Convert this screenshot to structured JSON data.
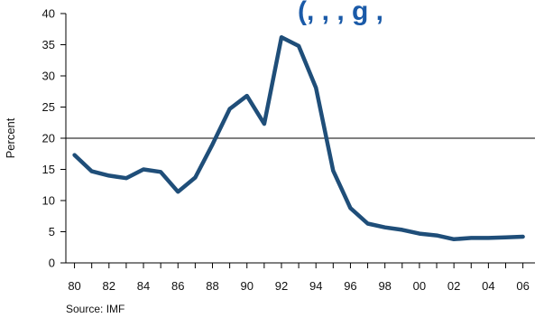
{
  "chart_data": {
    "type": "line",
    "title": "",
    "clipped_title_fragment": "(, ,    , g ,",
    "xlabel": "",
    "ylabel": "Percent",
    "source": "Source: IMF",
    "ylim": [
      0,
      40
    ],
    "y_ticks": [
      "0",
      "5",
      "10",
      "15",
      "20",
      "25",
      "30",
      "35",
      "40"
    ],
    "x_tick_labels": [
      "80",
      "82",
      "84",
      "86",
      "88",
      "90",
      "92",
      "94",
      "96",
      "98",
      "00",
      "02",
      "04",
      "06"
    ],
    "x_tick_count": 27,
    "reference_line": 20,
    "grid": false,
    "series": [
      {
        "color": "#1f4e79",
        "x": [
          1980,
          1981,
          1982,
          1983,
          1984,
          1985,
          1986,
          1987,
          1988,
          1989,
          1990,
          1991,
          1992,
          1993,
          1994,
          1995,
          1996,
          1997,
          1998,
          1999,
          2000,
          2001,
          2002,
          2003,
          2004,
          2005,
          2006
        ],
        "values": [
          17.3,
          14.7,
          14.0,
          13.6,
          15.0,
          14.6,
          11.4,
          13.7,
          19.0,
          24.7,
          26.8,
          22.3,
          36.2,
          34.8,
          28.1,
          14.8,
          8.8,
          6.3,
          5.7,
          5.3,
          4.7,
          4.4,
          3.8,
          4.0,
          4.0,
          4.1,
          4.2
        ]
      }
    ]
  }
}
